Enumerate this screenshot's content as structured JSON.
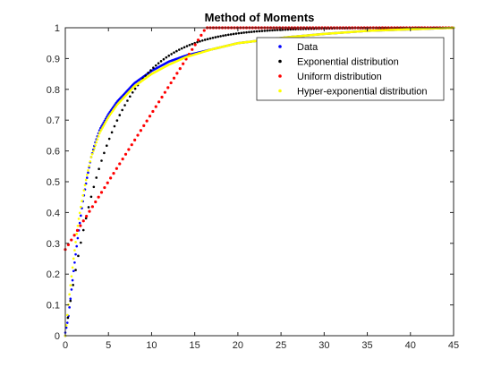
{
  "chart_data": {
    "type": "scatter",
    "title": "Method of Moments",
    "xlabel": "",
    "ylabel": "",
    "xlim": [
      0,
      45
    ],
    "ylim": [
      0,
      1
    ],
    "xticks": [
      "0",
      "5",
      "10",
      "15",
      "20",
      "25",
      "30",
      "35",
      "40",
      "45"
    ],
    "yticks": [
      "0",
      "0.1",
      "0.2",
      "0.3",
      "0.4",
      "0.5",
      "0.6",
      "0.7",
      "0.8",
      "0.9",
      "1"
    ],
    "grid": false,
    "legend_position": "top-right",
    "series": [
      {
        "name": "Data",
        "color": "#0000ff",
        "points": [
          [
            0,
            0.01
          ],
          [
            0.3,
            0.05
          ],
          [
            0.6,
            0.12
          ],
          [
            1,
            0.22
          ],
          [
            1.5,
            0.33
          ],
          [
            2,
            0.43
          ],
          [
            2.5,
            0.51
          ],
          [
            3,
            0.58
          ],
          [
            3.5,
            0.63
          ],
          [
            4,
            0.67
          ],
          [
            5,
            0.72
          ],
          [
            6,
            0.76
          ],
          [
            7,
            0.79
          ],
          [
            8,
            0.82
          ],
          [
            10,
            0.86
          ],
          [
            12,
            0.89
          ],
          [
            14,
            0.91
          ],
          [
            17,
            0.93
          ],
          [
            20,
            0.95
          ],
          [
            23,
            0.96
          ],
          [
            26,
            0.97
          ],
          [
            30,
            0.98
          ],
          [
            35,
            0.99
          ],
          [
            40,
            0.995
          ],
          [
            45,
            1.0
          ]
        ]
      },
      {
        "name": "Exponential distribution",
        "color": "#000000",
        "rate": 0.2
      },
      {
        "name": "Uniform distribution",
        "color": "#ff0000",
        "points": [
          [
            0,
            0.28
          ],
          [
            16.3,
            1.0
          ],
          [
            45,
            1.0
          ]
        ]
      },
      {
        "name": "Hyper-exponential distribution",
        "color": "#ffff00",
        "points": [
          [
            0,
            0.0
          ],
          [
            0.5,
            0.14
          ],
          [
            1,
            0.26
          ],
          [
            1.5,
            0.37
          ],
          [
            2,
            0.45
          ],
          [
            2.5,
            0.52
          ],
          [
            3,
            0.58
          ],
          [
            4,
            0.66
          ],
          [
            5,
            0.71
          ],
          [
            6,
            0.75
          ],
          [
            7,
            0.78
          ],
          [
            8,
            0.81
          ],
          [
            10,
            0.85
          ],
          [
            12,
            0.88
          ],
          [
            14,
            0.905
          ],
          [
            17,
            0.93
          ],
          [
            20,
            0.95
          ],
          [
            23,
            0.96
          ],
          [
            26,
            0.97
          ],
          [
            30,
            0.98
          ],
          [
            35,
            0.99
          ],
          [
            40,
            0.995
          ],
          [
            45,
            1.0
          ]
        ]
      }
    ]
  }
}
